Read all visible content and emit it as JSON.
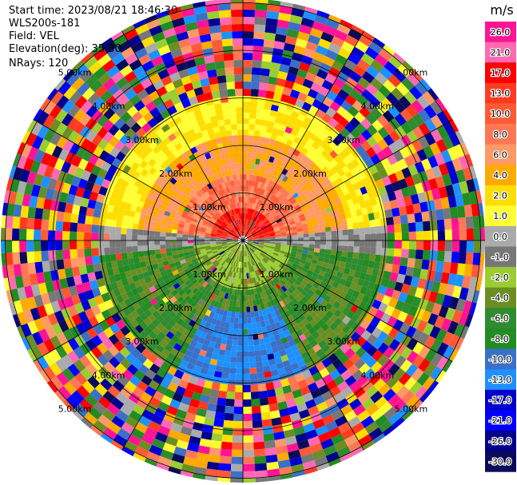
{
  "header": {
    "start_time": "Start time: 2023/08/21 18:46:30",
    "instrument": "WLS200s-181",
    "field": "Field: VEL",
    "elevation": "Elevation(deg): 35.30",
    "nrays": "NRays: 120"
  },
  "chart_data": {
    "type": "ppi",
    "field": "VEL",
    "units": "m/s",
    "n_rays": 120,
    "elevation_deg": 35.3,
    "range_rings_km": [
      1,
      2,
      3,
      4,
      5
    ],
    "range_ring_labels": [
      "1.00km",
      "2.00km",
      "3.00km",
      "4.00km",
      "5.00km"
    ],
    "colorbar": {
      "label": "m/s",
      "ticks": [
        "26.0",
        "21.0",
        "17.0",
        "13.0",
        "10.0",
        "8.0",
        "6.0",
        "4.0",
        "2.0",
        "1.0",
        "0.0",
        "-1.0",
        "-2.0",
        "-4.0",
        "-6.0",
        "-8.0",
        "-10.0",
        "-13.0",
        "-17.0",
        "-21.0",
        "-26.0",
        "-30.0"
      ],
      "colors": [
        "#ff1493",
        "#ff69b4",
        "#ff0000",
        "#ff3b1f",
        "#ff5a36",
        "#ff7755",
        "#ff9966",
        "#ffaa00",
        "#ffdd00",
        "#ffff33",
        "#aaaaaa",
        "#777777",
        "#9acd32",
        "#6b8e23",
        "#2e8b2e",
        "#228b22",
        "#3a70c8",
        "#1e90ff",
        "#0000cd",
        "#0000ff",
        "#00008b",
        "#0a0a5a"
      ]
    },
    "near_field_pattern": {
      "north_sector": "positive (4 to 21 m/s)",
      "south_sector": "negative (-2 to -10 m/s)",
      "east_west_band": "near zero (-1 to 1 m/s)",
      "beyond_3km": "noisy"
    }
  }
}
